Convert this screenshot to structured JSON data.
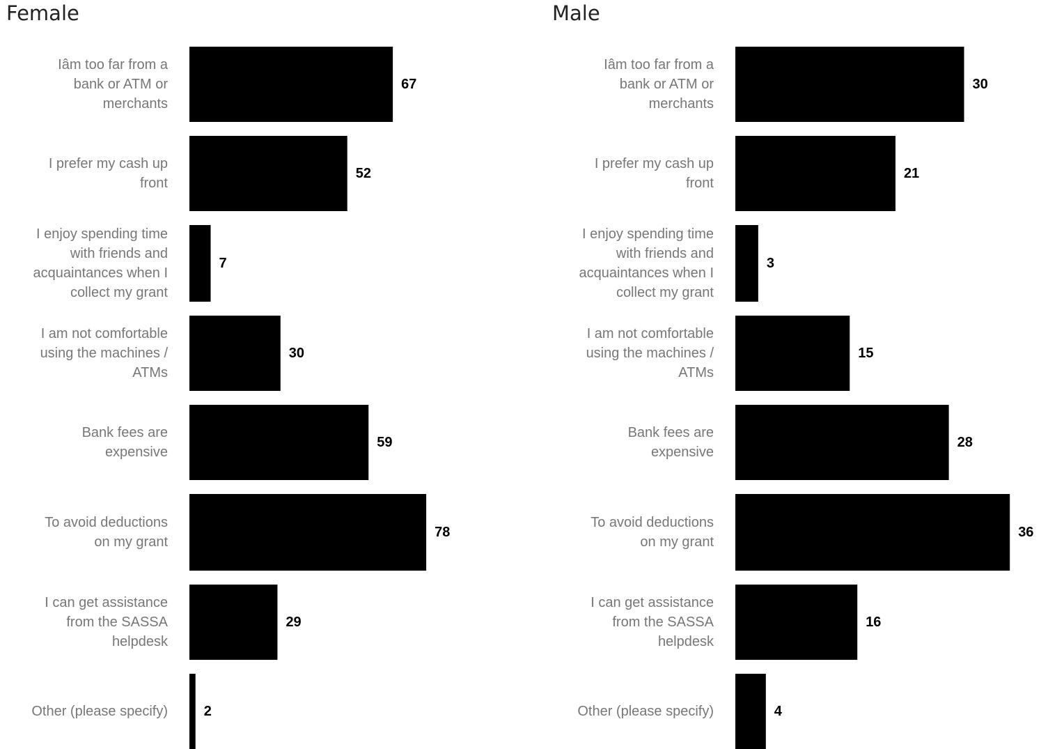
{
  "chart_data": [
    {
      "type": "bar",
      "orientation": "horizontal",
      "title": "Female",
      "categories": [
        [
          "Iâm too far from a",
          "bank or ATM or",
          "merchants"
        ],
        [
          "I prefer my cash up",
          "front"
        ],
        [
          "I enjoy spending time",
          "with friends and",
          "acquaintances when I",
          "collect my grant"
        ],
        [
          "I am not comfortable",
          "using the machines /",
          "ATMs"
        ],
        [
          "Bank fees are",
          "expensive"
        ],
        [
          "To avoid deductions",
          "on my grant"
        ],
        [
          "I can get assistance",
          "from the SASSA",
          "helpdesk"
        ],
        [
          "Other (please specify)"
        ]
      ],
      "values": [
        67,
        52,
        7,
        30,
        59,
        78,
        29,
        2
      ],
      "bar_color": "#000000",
      "label_color": "#777777",
      "value_label_color": "#000000",
      "grid": false,
      "legend": "none"
    },
    {
      "type": "bar",
      "orientation": "horizontal",
      "title": "Male",
      "categories": [
        [
          "Iâm too far from a",
          "bank or ATM or",
          "merchants"
        ],
        [
          "I prefer my cash up",
          "front"
        ],
        [
          "I enjoy spending time",
          "with friends and",
          "acquaintances when I",
          "collect my grant"
        ],
        [
          "I am not comfortable",
          "using the machines /",
          "ATMs"
        ],
        [
          "Bank fees are",
          "expensive"
        ],
        [
          "To avoid deductions",
          "on my grant"
        ],
        [
          "I can get assistance",
          "from the SASSA",
          "helpdesk"
        ],
        [
          "Other (please specify)"
        ]
      ],
      "values": [
        30,
        21,
        3,
        15,
        28,
        36,
        16,
        4
      ],
      "bar_color": "#000000",
      "label_color": "#777777",
      "value_label_color": "#000000",
      "grid": false,
      "legend": "none"
    }
  ]
}
